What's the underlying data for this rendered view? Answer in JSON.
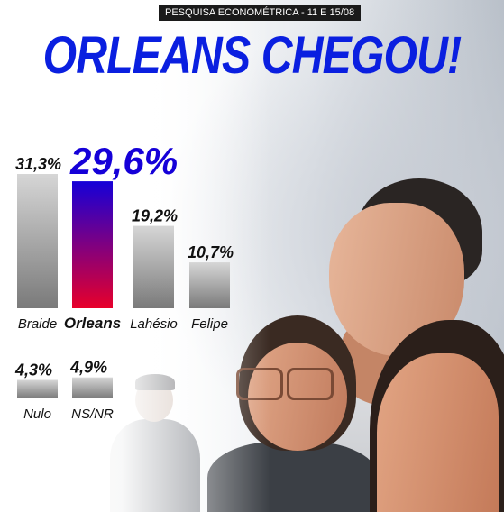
{
  "header": {
    "badge": "PESQUISA ECONOMÉTRICA - 11 E 15/08",
    "title": "ORLEANS CHEGOU!"
  },
  "colors": {
    "title": "#0a1fe0",
    "highlight_top": "#1500d8",
    "highlight_bottom": "#e8002a",
    "bar_top": "#d6d6d6",
    "bar_bottom": "#7a7a7a"
  },
  "chart_data": [
    {
      "type": "bar",
      "categories": [
        "Braide",
        "Orleans",
        "Lahésio",
        "Felipe"
      ],
      "values": [
        31.3,
        29.6,
        19.2,
        10.7
      ],
      "value_labels": [
        "31,3%",
        "29,6%",
        "19,2%",
        "10,7%"
      ],
      "highlight": "Orleans",
      "ylim": [
        0,
        31.3
      ]
    },
    {
      "type": "bar",
      "categories": [
        "Nulo",
        "NS/NR"
      ],
      "values": [
        4.3,
        4.9
      ],
      "value_labels": [
        "4,3%",
        "4,9%"
      ],
      "ylim": [
        0,
        31.3
      ]
    }
  ]
}
